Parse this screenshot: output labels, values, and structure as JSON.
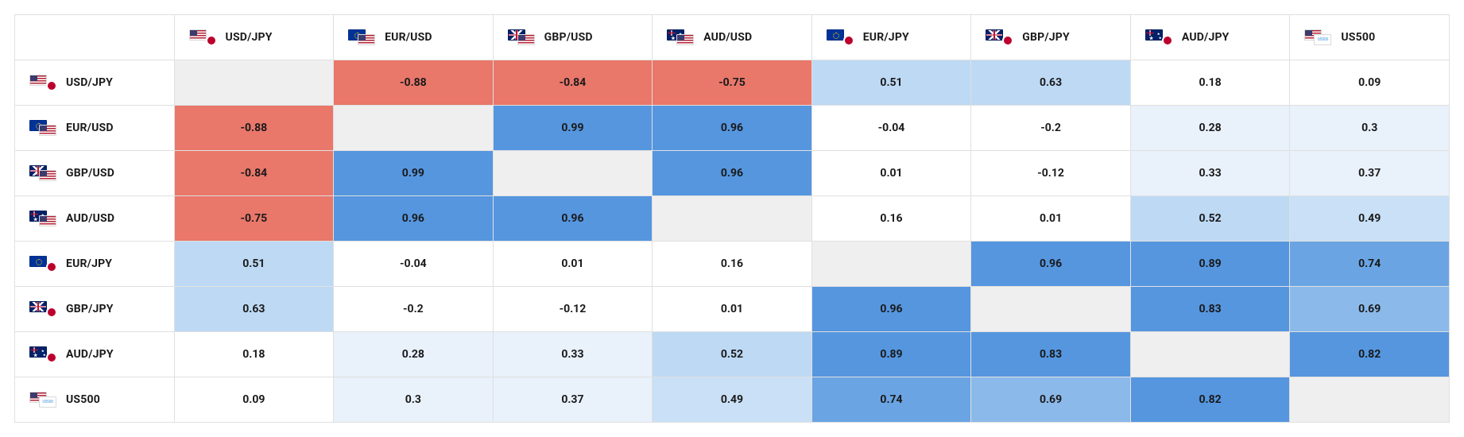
{
  "correlation_matrix": {
    "type": "heatmap",
    "symbols": [
      "USD/JPY",
      "EUR/USD",
      "GBP/USD",
      "AUD/USD",
      "EUR/JPY",
      "GBP/JPY",
      "AUD/JPY",
      "US500"
    ],
    "flag_pairs": {
      "USD/JPY": [
        "us",
        "jp_dot"
      ],
      "EUR/USD": [
        "eu",
        "us"
      ],
      "GBP/USD": [
        "gb",
        "us"
      ],
      "AUD/USD": [
        "au",
        "us"
      ],
      "EUR/JPY": [
        "eu",
        "jp_dot"
      ],
      "GBP/JPY": [
        "gb",
        "jp_dot"
      ],
      "AUD/JPY": [
        "au",
        "jp_dot"
      ],
      "US500": [
        "us",
        "us500"
      ]
    },
    "flag_colors": {
      "us": {
        "bg": "#ffffff",
        "stripes": "#b22234",
        "canton": "#3c3b6e"
      },
      "jp_dot": {
        "bg": "#ffffff",
        "dot": "#bc002d"
      },
      "eu": {
        "bg": "#003399"
      },
      "gb": {
        "bg": "#012169",
        "cross": "#ffffff",
        "cross2": "#c8102e"
      },
      "au": {
        "bg": "#012169"
      },
      "us500": {
        "bg": "#ffffff",
        "text": "#7fb8e8",
        "label": "US500"
      }
    },
    "cells": [
      [
        null,
        -0.88,
        -0.84,
        -0.75,
        0.51,
        0.63,
        0.18,
        0.09
      ],
      [
        -0.88,
        null,
        0.99,
        0.96,
        -0.04,
        -0.2,
        0.28,
        0.3
      ],
      [
        -0.84,
        0.99,
        null,
        0.96,
        0.01,
        -0.12,
        0.33,
        0.37
      ],
      [
        -0.75,
        0.96,
        0.96,
        null,
        0.16,
        0.01,
        0.52,
        0.49
      ],
      [
        0.51,
        -0.04,
        0.01,
        0.16,
        null,
        0.96,
        0.89,
        0.74
      ],
      [
        0.63,
        -0.2,
        -0.12,
        0.01,
        0.96,
        null,
        0.83,
        0.69
      ],
      [
        0.18,
        0.28,
        0.33,
        0.52,
        0.89,
        0.83,
        null,
        0.82
      ],
      [
        0.09,
        0.3,
        0.37,
        0.49,
        0.74,
        0.69,
        0.82,
        null
      ]
    ],
    "cell_colors": [
      [
        "#efefef",
        "#e9776a",
        "#e9776a",
        "#e9776a",
        "#bdd9f4",
        "#bdd9f4",
        "#ffffff",
        "#ffffff"
      ],
      [
        "#e9776a",
        "#efefef",
        "#5596df",
        "#5596df",
        "#ffffff",
        "#ffffff",
        "#e9f1fb",
        "#e9f1fb"
      ],
      [
        "#e9776a",
        "#5596df",
        "#efefef",
        "#5596df",
        "#ffffff",
        "#ffffff",
        "#e9f1fb",
        "#e9f1fb"
      ],
      [
        "#e9776a",
        "#5596df",
        "#5596df",
        "#efefef",
        "#ffffff",
        "#ffffff",
        "#bdd9f4",
        "#c9e0f6"
      ],
      [
        "#bdd9f4",
        "#ffffff",
        "#ffffff",
        "#ffffff",
        "#efefef",
        "#5596df",
        "#5596df",
        "#6aa4e3"
      ],
      [
        "#bdd9f4",
        "#ffffff",
        "#ffffff",
        "#ffffff",
        "#5596df",
        "#efefef",
        "#5596df",
        "#8bb9ea"
      ],
      [
        "#ffffff",
        "#e9f1fb",
        "#e9f1fb",
        "#bdd9f4",
        "#5596df",
        "#5596df",
        "#efefef",
        "#5596df"
      ],
      [
        "#ffffff",
        "#e9f1fb",
        "#e9f1fb",
        "#c9e0f6",
        "#6aa4e3",
        "#8bb9ea",
        "#5596df",
        "#efefef"
      ]
    ],
    "border_color": "#e0e0e0",
    "header_bg": "#ffffff",
    "font_size_cell": 14,
    "font_weight_cell": 700,
    "text_color": "#1a1a1a"
  }
}
